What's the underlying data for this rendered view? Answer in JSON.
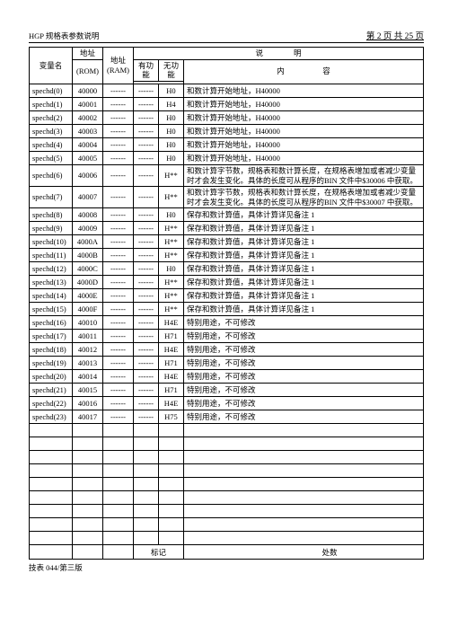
{
  "header": {
    "title": "HGP 规格表参数说明",
    "page": "第 2 页 共 25 页"
  },
  "footer": {
    "mark_label": "标记",
    "loc_label": "处数",
    "note": "技表 044/第三版"
  },
  "thead": {
    "name": "变量名",
    "rom": "地址",
    "ram": "地址",
    "rom_sub": "(ROM)",
    "ram_sub": "(RAM)",
    "explain": "说　　　　明",
    "f1": "有功能",
    "f2": "无功能",
    "content": "内　　　　　容"
  },
  "rows": [
    {
      "n": "spechd(0)",
      "rom": "40000",
      "ram": "------",
      "f1": "------",
      "f2": "H0",
      "d": "和数计算开始地址，H40000"
    },
    {
      "n": "spechd(1)",
      "rom": "40001",
      "ram": "------",
      "f1": "------",
      "f2": "H4",
      "d": "和数计算开始地址，H40000"
    },
    {
      "n": "spechd(2)",
      "rom": "40002",
      "ram": "------",
      "f1": "------",
      "f2": "H0",
      "d": "和数计算开始地址，H40000"
    },
    {
      "n": "spechd(3)",
      "rom": "40003",
      "ram": "------",
      "f1": "------",
      "f2": "H0",
      "d": "和数计算开始地址，H40000"
    },
    {
      "n": "spechd(4)",
      "rom": "40004",
      "ram": "------",
      "f1": "------",
      "f2": "H0",
      "d": "和数计算开始地址，H40000"
    },
    {
      "n": "spechd(5)",
      "rom": "40005",
      "ram": "------",
      "f1": "------",
      "f2": "H0",
      "d": "和数计算开始地址，H40000"
    },
    {
      "n": "spechd(6)",
      "rom": "40006",
      "ram": "------",
      "f1": "------",
      "f2": "H**",
      "d": "和数计算字节数，规格表和数计算长度，在规格表增加或者减少变量时才会发生变化。具体的长度可从程序的BIN 文件中$30006 中获取。",
      "big": true
    },
    {
      "n": "spechd(7)",
      "rom": "40007",
      "ram": "------",
      "f1": "------",
      "f2": "H**",
      "d": "和数计算字节数，规格表和数计算长度，在规格表增加或者减少变量时才会发生变化。具体的长度可从程序的BIN 文件中$30007 中获取。",
      "big": true
    },
    {
      "n": "spechd(8)",
      "rom": "40008",
      "ram": "------",
      "f1": "------",
      "f2": "H0",
      "d": "保存和数计算值，具体计算详见备注 1"
    },
    {
      "n": "spechd(9)",
      "rom": "40009",
      "ram": "------",
      "f1": "------",
      "f2": "H**",
      "d": "保存和数计算值，具体计算详见备注 1"
    },
    {
      "n": "spechd(10)",
      "rom": "4000A",
      "ram": "------",
      "f1": "------",
      "f2": "H**",
      "d": "保存和数计算值，具体计算详见备注 1"
    },
    {
      "n": "spechd(11)",
      "rom": "4000B",
      "ram": "------",
      "f1": "------",
      "f2": "H**",
      "d": "保存和数计算值，具体计算详见备注 1"
    },
    {
      "n": "spechd(12)",
      "rom": "4000C",
      "ram": "------",
      "f1": "------",
      "f2": "H0",
      "d": "保存和数计算值，具体计算详见备注 1"
    },
    {
      "n": "spechd(13)",
      "rom": "4000D",
      "ram": "------",
      "f1": "------",
      "f2": "H**",
      "d": "保存和数计算值，具体计算详见备注 1"
    },
    {
      "n": "spechd(14)",
      "rom": "4000E",
      "ram": "------",
      "f1": "------",
      "f2": "H**",
      "d": "保存和数计算值，具体计算详见备注 1"
    },
    {
      "n": "spechd(15)",
      "rom": "4000F",
      "ram": "------",
      "f1": "------",
      "f2": "H**",
      "d": "保存和数计算值，具体计算详见备注 1"
    },
    {
      "n": "spechd(16)",
      "rom": "40010",
      "ram": "------",
      "f1": "------",
      "f2": "H4E",
      "d": "特别用途，不可修改"
    },
    {
      "n": "spechd(17)",
      "rom": "40011",
      "ram": "------",
      "f1": "------",
      "f2": "H71",
      "d": "特别用途，不可修改"
    },
    {
      "n": "spechd(18)",
      "rom": "40012",
      "ram": "------",
      "f1": "------",
      "f2": "H4E",
      "d": "特别用途，不可修改"
    },
    {
      "n": "spechd(19)",
      "rom": "40013",
      "ram": "------",
      "f1": "------",
      "f2": "H71",
      "d": "特别用途，不可修改"
    },
    {
      "n": "spechd(20)",
      "rom": "40014",
      "ram": "------",
      "f1": "------",
      "f2": "H4E",
      "d": "特别用途，不可修改"
    },
    {
      "n": "spechd(21)",
      "rom": "40015",
      "ram": "------",
      "f1": "------",
      "f2": "H71",
      "d": "特别用途，不可修改"
    },
    {
      "n": "spechd(22)",
      "rom": "40016",
      "ram": "------",
      "f1": "------",
      "f2": "H4E",
      "d": "特别用途，不可修改"
    },
    {
      "n": "spechd(23)",
      "rom": "40017",
      "ram": "------",
      "f1": "------",
      "f2": "H75",
      "d": "特别用途，不可修改"
    }
  ],
  "empty_rows": 9
}
